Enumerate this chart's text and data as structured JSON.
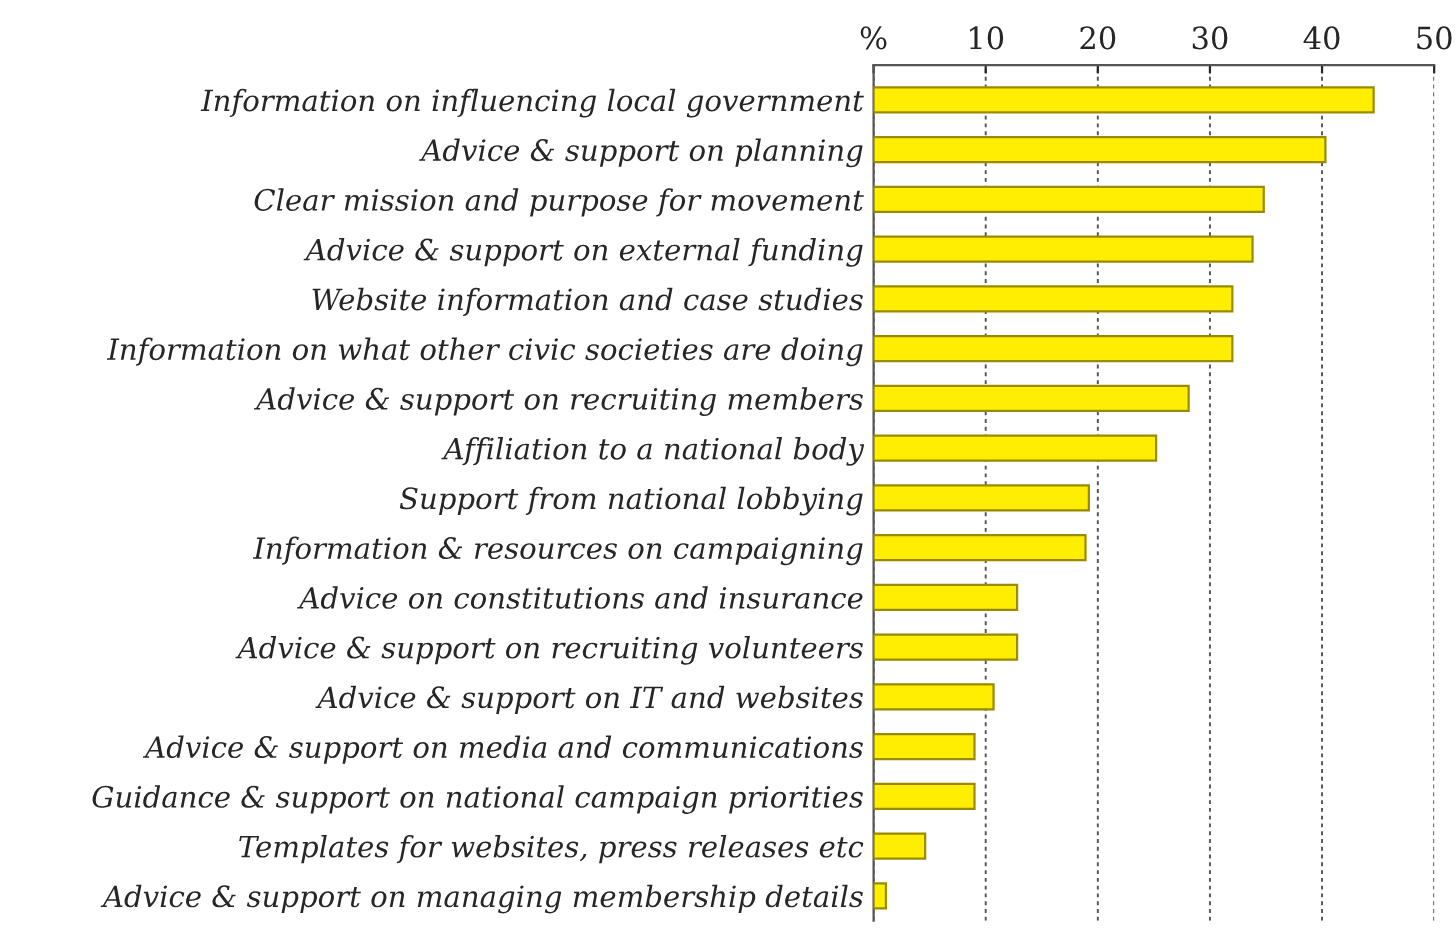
{
  "chart_data": {
    "type": "bar",
    "orientation": "horizontal",
    "categories": [
      "Information on influencing local government",
      "Advice & support on planning",
      "Clear mission and purpose for movement",
      "Advice & support on external funding",
      "Website information and case studies",
      "Information on what other civic societies are doing",
      "Advice & support on recruiting members",
      "Affiliation to a national body",
      "Support from national lobbying",
      "Information & resources on campaigning",
      "Advice on constitutions and insurance",
      "Advice & support on recruiting volunteers",
      "Advice & support on IT and websites",
      "Advice & support on media and communications",
      "Guidance & support on national campaign priorities",
      "Templates for websites, press releases etc",
      "Advice & support on managing membership details"
    ],
    "values": [
      44.6,
      40.3,
      34.8,
      33.8,
      32,
      32,
      28.1,
      25.2,
      19.2,
      18.9,
      12.8,
      12.8,
      10.7,
      9,
      9,
      4.6,
      1.1
    ],
    "color": "#ffee00",
    "xlim": [
      0,
      50
    ],
    "xticks": [
      {
        "value": 0,
        "label": "%"
      },
      10,
      20,
      30,
      40,
      50
    ],
    "grid": "x",
    "legend": false
  }
}
